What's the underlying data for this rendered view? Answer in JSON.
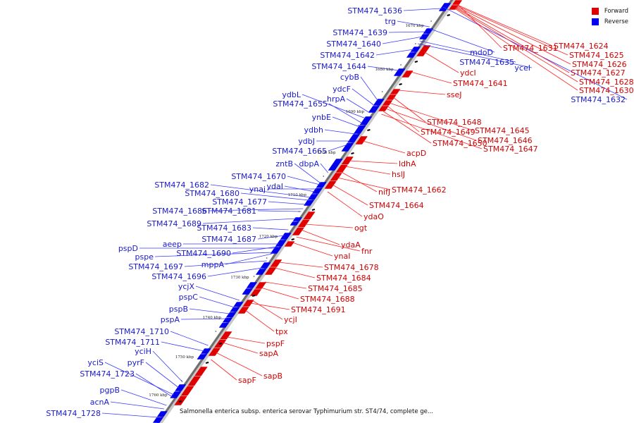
{
  "legend": {
    "items": [
      {
        "label": "Forward",
        "color": "#e00000"
      },
      {
        "label": "Reverse",
        "color": "#0000ee"
      }
    ]
  },
  "caption": "Salmonella enterica subsp. enterica serovar Typhimurium str. ST4/74, complete ge...",
  "ticks": [
    "1670 kbp",
    "1680 kbp",
    "1690 kbp",
    "1700 kbp",
    "1710 kbp",
    "1720 kbp",
    "1730 kbp",
    "1740 kbp",
    "1750 kbp",
    "1760 kbp"
  ],
  "reverse_labels": [
    "STM474_1636",
    "trg",
    "STM474_1639",
    "STM474_1640",
    "STM474_1642",
    "STM474_1644",
    "cybB",
    "ydcF",
    "hrpA",
    "ydbL",
    "STM474_1655",
    "ynbE",
    "ydbh",
    "ydbJ",
    "STM474_1665",
    "zntB",
    "dbpA",
    "STM474_1670",
    "ynaj",
    "ydaI",
    "STM474_1682",
    "STM474_1680",
    "STM474_1677",
    "STM474_1686",
    "STM474_1681",
    "STM474_1689",
    "STM474_1683",
    "STM474_1687",
    "aeep",
    "pspD",
    "pspe",
    "STM474_1690",
    "mppA",
    "STM474_1697",
    "STM474_1696",
    "ycjX",
    "pspC",
    "pspB",
    "pspA",
    "STM474_1710",
    "STM474_1711",
    "yciH",
    "pyrF",
    "yciS",
    "STM474_1723",
    "pgpB",
    "acnA",
    "STM474_1728",
    "mdoD",
    "STM474_1635",
    "yceI",
    "STM474_1632"
  ],
  "forward_labels": [
    "STM474_1631",
    "STM474_1624",
    "STM474_1625",
    "STM474_1626",
    "STM474_1627",
    "STM474_1628",
    "STM474_1630",
    "ydcI",
    "STM474_1641",
    "sseJ",
    "STM474_1648",
    "STM474_1645",
    "STM474_1649",
    "STM474_1646",
    "STM474_1650",
    "STM474_1647",
    "acpD",
    "ldhA",
    "hslJ",
    "nifJ",
    "STM474_1662",
    "STM474_1664",
    "ydaO",
    "ogt",
    "ydaA",
    "fnr",
    "ynaI",
    "STM474_1678",
    "STM474_1684",
    "STM474_1685",
    "STM474_1688",
    "ycjI",
    "STM474_1691",
    "tpx",
    "pspF",
    "sapA",
    "sapB",
    "sapF"
  ]
}
